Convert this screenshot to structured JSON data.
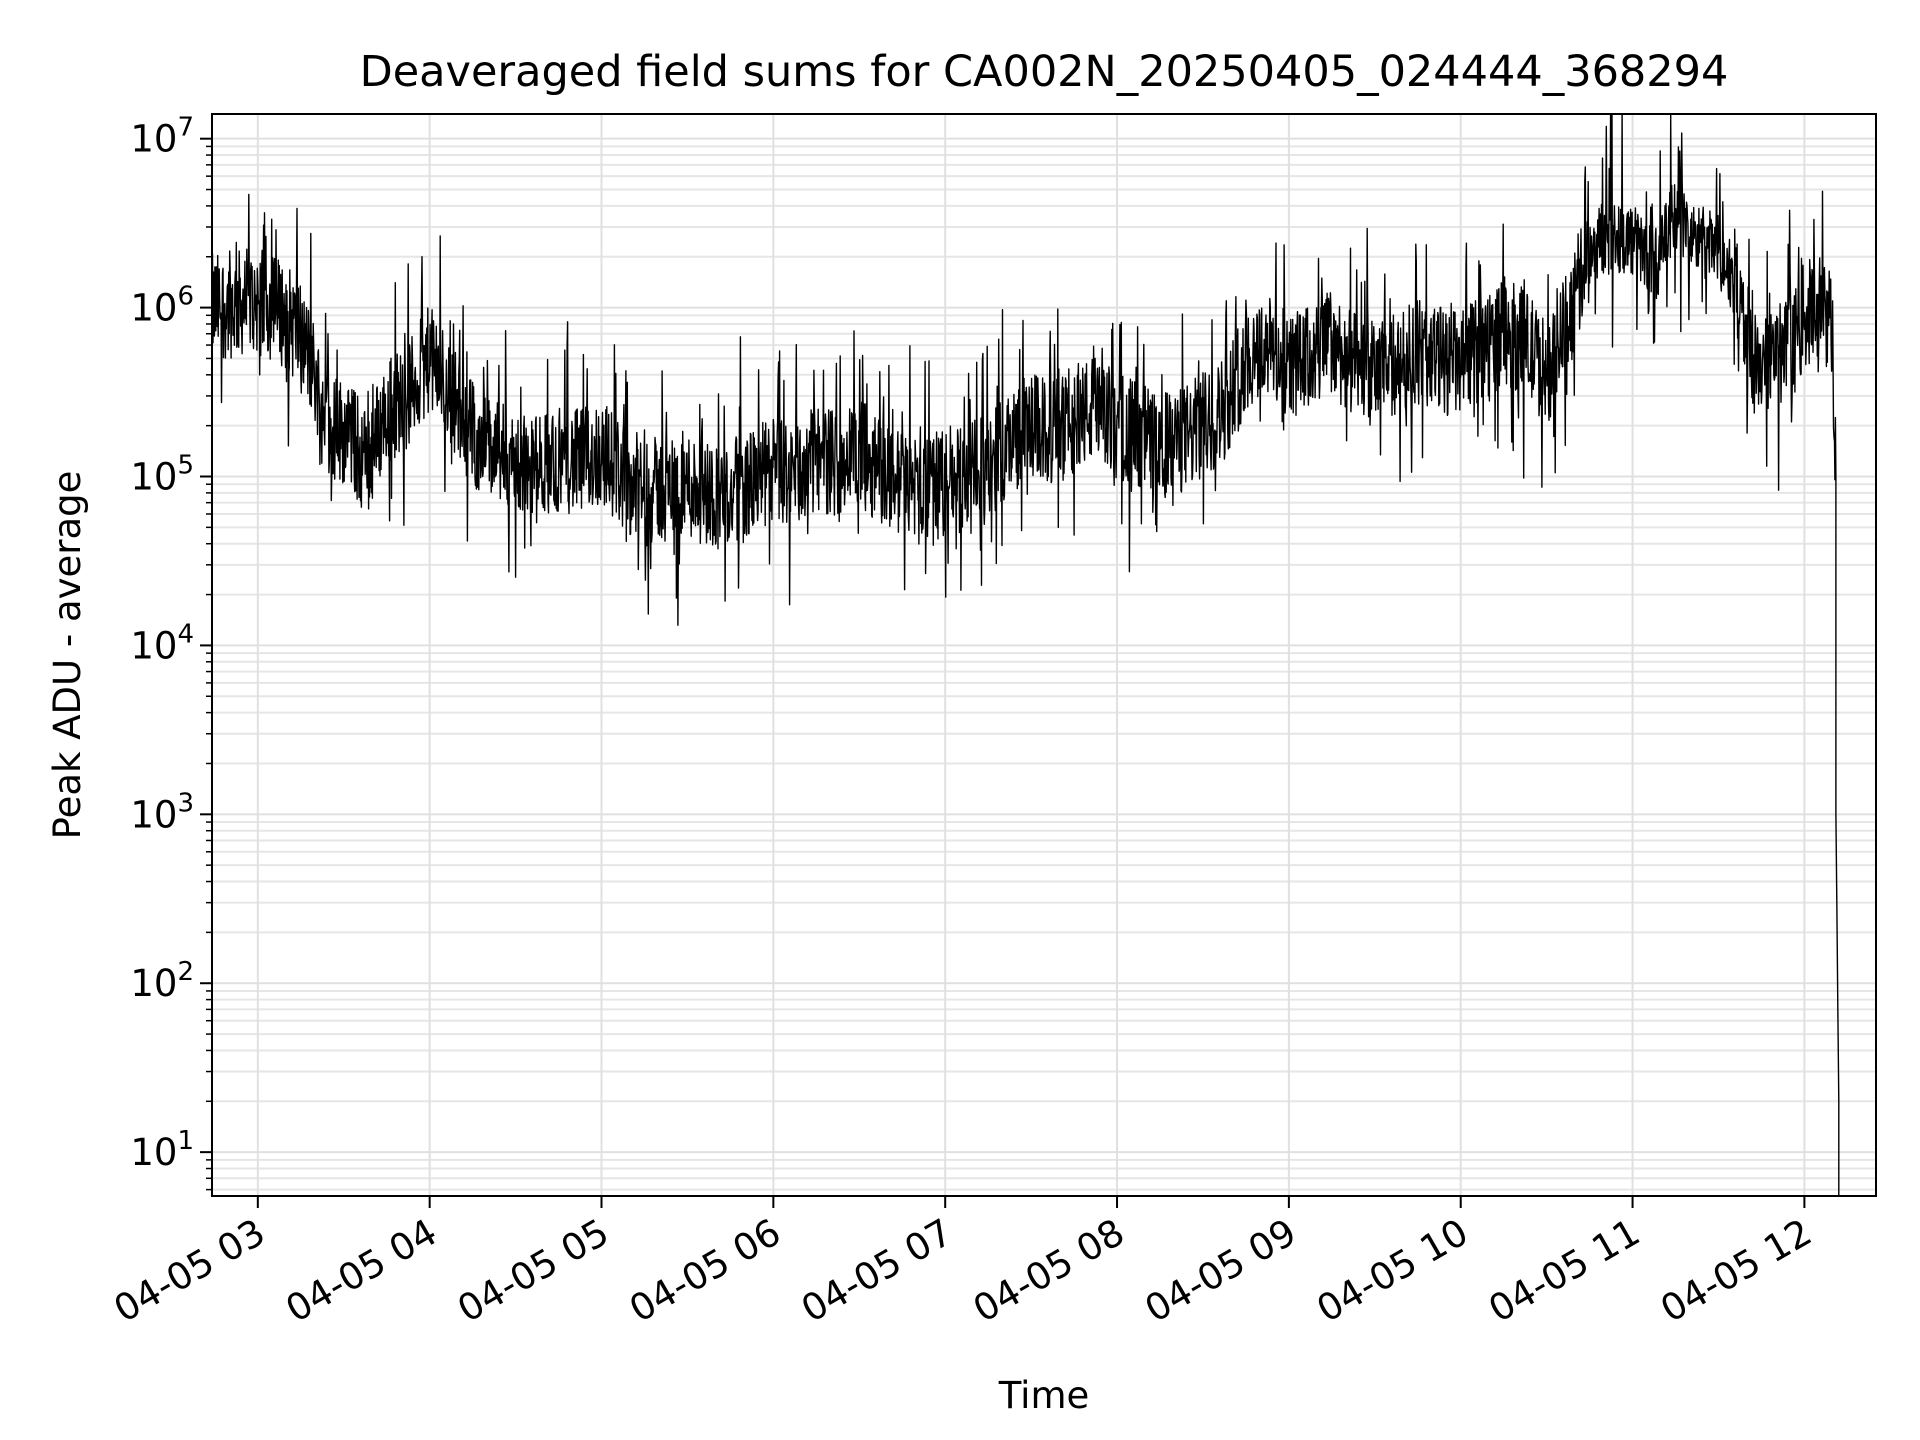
{
  "chart_data": {
    "type": "line",
    "title": "Deaveraged field sums for CA002N_20250405_024444_368294",
    "xlabel": "Time",
    "ylabel": "Peak ADU - average",
    "y_scale": "log",
    "ylim": [
      5.5,
      14000000
    ],
    "xlim": [
      "04-05 02:44",
      "04-05 12:25"
    ],
    "grid": true,
    "x_ticks": [
      {
        "label": "04-05 03",
        "value": "04-05 03:00"
      },
      {
        "label": "04-05 04",
        "value": "04-05 04:00"
      },
      {
        "label": "04-05 05",
        "value": "04-05 05:00"
      },
      {
        "label": "04-05 06",
        "value": "04-05 06:00"
      },
      {
        "label": "04-05 07",
        "value": "04-05 07:00"
      },
      {
        "label": "04-05 08",
        "value": "04-05 08:00"
      },
      {
        "label": "04-05 09",
        "value": "04-05 09:00"
      },
      {
        "label": "04-05 10",
        "value": "04-05 10:00"
      },
      {
        "label": "04-05 11",
        "value": "04-05 11:00"
      },
      {
        "label": "04-05 12",
        "value": "04-05 12:00"
      }
    ],
    "y_ticks": [
      {
        "base": "10",
        "exp": "1",
        "value": 10
      },
      {
        "base": "10",
        "exp": "2",
        "value": 100
      },
      {
        "base": "10",
        "exp": "3",
        "value": 1000
      },
      {
        "base": "10",
        "exp": "4",
        "value": 10000
      },
      {
        "base": "10",
        "exp": "5",
        "value": 100000
      },
      {
        "base": "10",
        "exp": "6",
        "value": 1000000
      },
      {
        "base": "10",
        "exp": "7",
        "value": 10000000
      }
    ],
    "series": [
      {
        "color": "#000000",
        "points": [
          [
            "04-05 02:44",
            1000000
          ],
          [
            "04-05 02:52",
            1050000
          ],
          [
            "04-05 03:00",
            1100000
          ],
          [
            "04-05 03:08",
            950000
          ],
          [
            "04-05 03:15",
            700000
          ],
          [
            "04-05 03:20",
            400000
          ],
          [
            "04-05 03:25",
            200000
          ],
          [
            "04-05 03:32",
            180000
          ],
          [
            "04-05 03:38",
            120000
          ],
          [
            "04-05 03:45",
            250000
          ],
          [
            "04-05 03:52",
            300000
          ],
          [
            "04-05 04:00",
            500000
          ],
          [
            "04-05 04:08",
            300000
          ],
          [
            "04-05 04:15",
            180000
          ],
          [
            "04-05 04:22",
            140000
          ],
          [
            "04-05 04:30",
            120000
          ],
          [
            "04-05 04:37",
            110000
          ],
          [
            "04-05 04:45",
            130000
          ],
          [
            "04-05 04:52",
            120000
          ],
          [
            "04-05 05:00",
            140000
          ],
          [
            "04-05 05:08",
            100000
          ],
          [
            "04-05 05:15",
            80000
          ],
          [
            "04-05 05:22",
            85000
          ],
          [
            "04-05 05:30",
            90000
          ],
          [
            "04-05 05:37",
            80000
          ],
          [
            "04-05 05:45",
            75000
          ],
          [
            "04-05 05:52",
            90000
          ],
          [
            "04-05 06:00",
            110000
          ],
          [
            "04-05 06:08",
            100000
          ],
          [
            "04-05 06:15",
            130000
          ],
          [
            "04-05 06:22",
            120000
          ],
          [
            "04-05 06:30",
            140000
          ],
          [
            "04-05 06:37",
            110000
          ],
          [
            "04-05 06:45",
            90000
          ],
          [
            "04-05 06:52",
            85000
          ],
          [
            "04-05 07:00",
            90000
          ],
          [
            "04-05 07:08",
            100000
          ],
          [
            "04-05 07:15",
            110000
          ],
          [
            "04-05 07:22",
            160000
          ],
          [
            "04-05 07:30",
            200000
          ],
          [
            "04-05 07:37",
            180000
          ],
          [
            "04-05 07:45",
            220000
          ],
          [
            "04-05 07:52",
            250000
          ],
          [
            "04-05 08:00",
            200000
          ],
          [
            "04-05 08:08",
            180000
          ],
          [
            "04-05 08:15",
            150000
          ],
          [
            "04-05 08:22",
            160000
          ],
          [
            "04-05 08:30",
            200000
          ],
          [
            "04-05 08:37",
            250000
          ],
          [
            "04-05 08:45",
            500000
          ],
          [
            "04-05 08:52",
            600000
          ],
          [
            "04-05 09:00",
            450000
          ],
          [
            "04-05 09:08",
            500000
          ],
          [
            "04-05 09:15",
            650000
          ],
          [
            "04-05 09:22",
            450000
          ],
          [
            "04-05 09:30",
            400000
          ],
          [
            "04-05 09:37",
            450000
          ],
          [
            "04-05 09:45",
            550000
          ],
          [
            "04-05 09:52",
            500000
          ],
          [
            "04-05 10:00",
            450000
          ],
          [
            "04-05 10:08",
            600000
          ],
          [
            "04-05 10:15",
            700000
          ],
          [
            "04-05 10:22",
            650000
          ],
          [
            "04-05 10:30",
            400000
          ],
          [
            "04-05 10:37",
            800000
          ],
          [
            "04-05 10:45",
            2200000
          ],
          [
            "04-05 10:52",
            2800000
          ],
          [
            "04-05 11:00",
            2500000
          ],
          [
            "04-05 11:08",
            1800000
          ],
          [
            "04-05 11:15",
            3500000
          ],
          [
            "04-05 11:22",
            2500000
          ],
          [
            "04-05 11:30",
            2200000
          ],
          [
            "04-05 11:37",
            1300000
          ],
          [
            "04-05 11:42",
            450000
          ],
          [
            "04-05 11:48",
            500000
          ],
          [
            "04-05 11:55",
            550000
          ],
          [
            "04-05 12:00",
            900000
          ],
          [
            "04-05 12:05",
            1000000
          ],
          [
            "04-05 12:09",
            850000
          ],
          [
            "04-05 12:10",
            600000
          ],
          [
            "04-05 12:11",
            100000
          ],
          [
            "04-05 12:11",
            1000
          ],
          [
            "04-05 12:12",
            20
          ],
          [
            "04-05 12:12",
            12
          ],
          [
            "04-05 12:12",
            5.5
          ]
        ]
      }
    ]
  }
}
